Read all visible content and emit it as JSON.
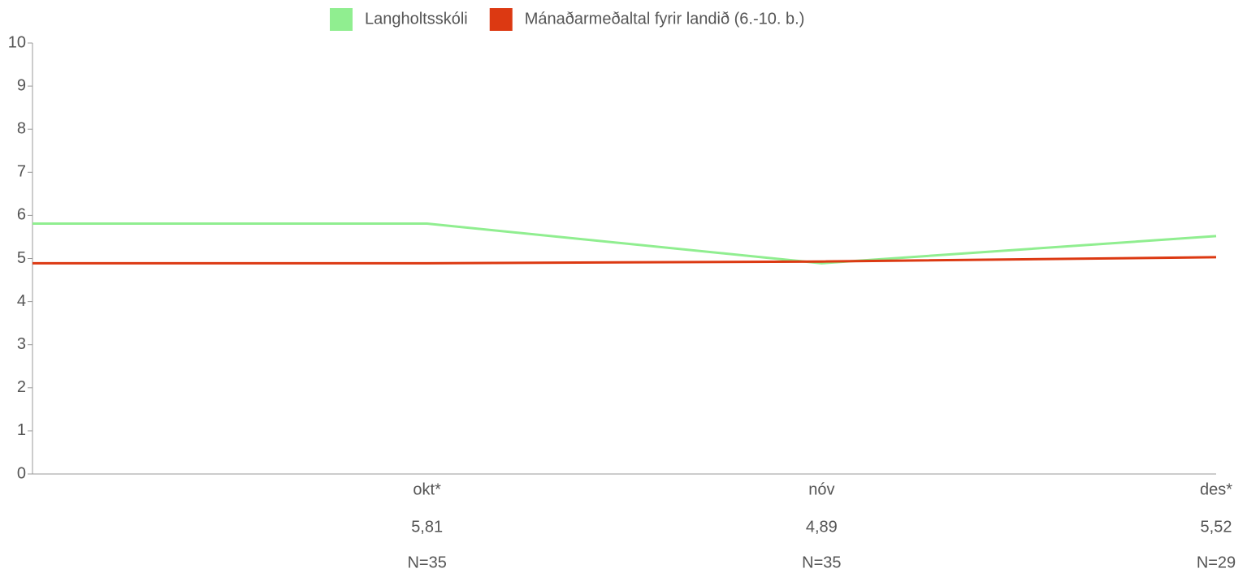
{
  "chart_data": {
    "type": "line",
    "categories": [
      null,
      "okt*",
      "nóv",
      "des*"
    ],
    "series": [
      {
        "name": "Langholtsskóli",
        "color": "#90ee90",
        "values": [
          5.81,
          5.81,
          4.89,
          5.52
        ],
        "value_labels": [
          null,
          "5,81",
          "4,89",
          "5,52"
        ],
        "n_labels": [
          null,
          "N=35",
          "N=35",
          "N=29"
        ]
      },
      {
        "name": "Mánaðarmeðaltal fyrir landið (6.-10. b.)",
        "color": "#dc3912",
        "values": [
          4.89,
          4.89,
          4.93,
          5.03
        ]
      }
    ],
    "ylim": [
      0,
      10
    ],
    "yticks": [
      0,
      1,
      2,
      3,
      4,
      5,
      6,
      7,
      8,
      9,
      10
    ],
    "legend": "top"
  }
}
